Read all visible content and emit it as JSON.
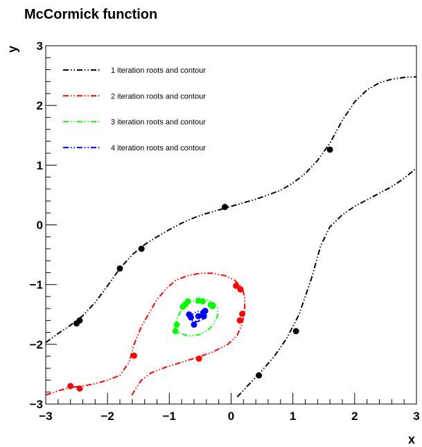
{
  "chart_data": {
    "type": "scatter",
    "title": "McCormick function",
    "xlabel": "x",
    "ylabel": "y",
    "xlim": [
      -3,
      3
    ],
    "ylim": [
      -3,
      3
    ],
    "x_ticks": [
      -3,
      -2,
      -1,
      0,
      1,
      2,
      3
    ],
    "y_ticks": [
      -3,
      -2,
      -1,
      0,
      1,
      2,
      3
    ],
    "x_tick_labels": [
      "−3",
      "−2",
      "−1",
      "0",
      "1",
      "2",
      "3"
    ],
    "y_tick_labels": [
      "−3",
      "−2",
      "−1",
      "0",
      "1",
      "2",
      "3"
    ],
    "grid": false,
    "legend_position": "top-left",
    "series": [
      {
        "name": "1 iteration roots and contour",
        "color": "#000000",
        "contours": [
          [
            [
              -3.0,
              -1.97
            ],
            [
              -2.8,
              -1.82
            ],
            [
              -2.6,
              -1.68
            ],
            [
              -2.4,
              -1.52
            ],
            [
              -2.2,
              -1.3
            ],
            [
              -2.0,
              -1.02
            ],
            [
              -1.8,
              -0.73
            ],
            [
              -1.6,
              -0.5
            ],
            [
              -1.4,
              -0.33
            ],
            [
              -1.2,
              -0.2
            ],
            [
              -1.0,
              -0.08
            ],
            [
              -0.8,
              0.03
            ],
            [
              -0.6,
              0.12
            ],
            [
              -0.4,
              0.19
            ],
            [
              -0.2,
              0.25
            ],
            [
              0.0,
              0.31
            ],
            [
              0.2,
              0.37
            ],
            [
              0.4,
              0.43
            ],
            [
              0.6,
              0.5
            ],
            [
              0.8,
              0.58
            ],
            [
              1.0,
              0.7
            ],
            [
              1.2,
              0.86
            ],
            [
              1.4,
              1.08
            ],
            [
              1.6,
              1.37
            ],
            [
              1.8,
              1.75
            ],
            [
              2.0,
              2.06
            ],
            [
              2.2,
              2.26
            ],
            [
              2.4,
              2.38
            ],
            [
              2.6,
              2.44
            ],
            [
              2.8,
              2.47
            ],
            [
              3.0,
              2.48
            ]
          ],
          [
            [
              0.1,
              -2.88
            ],
            [
              0.3,
              -2.66
            ],
            [
              0.5,
              -2.44
            ],
            [
              0.7,
              -2.2
            ],
            [
              0.9,
              -1.9
            ],
            [
              1.1,
              -1.5
            ],
            [
              1.3,
              -0.9
            ],
            [
              1.45,
              -0.35
            ],
            [
              1.6,
              -0.03
            ],
            [
              1.8,
              0.17
            ],
            [
              2.0,
              0.31
            ],
            [
              2.2,
              0.42
            ],
            [
              2.4,
              0.53
            ],
            [
              2.6,
              0.64
            ],
            [
              2.8,
              0.78
            ],
            [
              3.0,
              0.95
            ]
          ]
        ],
        "points": [
          [
            -2.5,
            -1.65
          ],
          [
            -2.45,
            -1.6
          ],
          [
            -1.8,
            -0.73
          ],
          [
            -1.45,
            -0.4
          ],
          [
            -0.1,
            0.3
          ],
          [
            1.6,
            1.26
          ],
          [
            1.05,
            -1.78
          ],
          [
            0.45,
            -2.52
          ]
        ]
      },
      {
        "name": "2 iteration roots and contour",
        "color": "#ff0000",
        "contours": [
          [
            [
              -3.0,
              -2.85
            ],
            [
              -2.8,
              -2.78
            ],
            [
              -2.6,
              -2.72
            ],
            [
              -2.4,
              -2.7
            ],
            [
              -2.2,
              -2.66
            ],
            [
              -2.0,
              -2.6
            ],
            [
              -1.8,
              -2.52
            ],
            [
              -1.65,
              -2.3
            ],
            [
              -1.57,
              -2.0
            ],
            [
              -1.45,
              -1.7
            ],
            [
              -1.3,
              -1.43
            ],
            [
              -1.2,
              -1.25
            ],
            [
              -1.05,
              -1.07
            ],
            [
              -0.9,
              -0.93
            ],
            [
              -0.7,
              -0.85
            ],
            [
              -0.5,
              -0.81
            ],
            [
              -0.3,
              -0.81
            ],
            [
              -0.1,
              -0.85
            ],
            [
              0.05,
              -0.92
            ],
            [
              0.18,
              -1.05
            ],
            [
              0.22,
              -1.22
            ],
            [
              0.22,
              -1.45
            ],
            [
              0.18,
              -1.65
            ],
            [
              0.1,
              -1.85
            ],
            [
              -0.05,
              -2.0
            ],
            [
              -0.3,
              -2.13
            ],
            [
              -0.55,
              -2.22
            ],
            [
              -0.8,
              -2.3
            ],
            [
              -1.05,
              -2.38
            ],
            [
              -1.3,
              -2.48
            ],
            [
              -1.45,
              -2.6
            ],
            [
              -1.55,
              -2.75
            ],
            [
              -1.62,
              -2.88
            ]
          ]
        ],
        "points": [
          [
            -2.6,
            -2.7
          ],
          [
            -2.45,
            -2.74
          ],
          [
            -1.57,
            -2.19
          ],
          [
            -0.52,
            -2.24
          ],
          [
            0.14,
            -1.6
          ],
          [
            0.18,
            -1.49
          ],
          [
            0.15,
            -1.08
          ],
          [
            0.08,
            -1.02
          ]
        ]
      },
      {
        "name": "3 iteration roots and contour",
        "color": "#00ff00",
        "contours": [
          [
            [
              -0.9,
              -1.75
            ],
            [
              -0.88,
              -1.58
            ],
            [
              -0.82,
              -1.45
            ],
            [
              -0.72,
              -1.33
            ],
            [
              -0.58,
              -1.26
            ],
            [
              -0.42,
              -1.25
            ],
            [
              -0.3,
              -1.29
            ],
            [
              -0.22,
              -1.38
            ],
            [
              -0.22,
              -1.52
            ],
            [
              -0.28,
              -1.66
            ],
            [
              -0.38,
              -1.77
            ],
            [
              -0.52,
              -1.84
            ],
            [
              -0.68,
              -1.86
            ],
            [
              -0.82,
              -1.82
            ],
            [
              -0.9,
              -1.75
            ]
          ]
        ],
        "points": [
          [
            -0.9,
            -1.78
          ],
          [
            -0.88,
            -1.67
          ],
          [
            -0.78,
            -1.37
          ],
          [
            -0.74,
            -1.33
          ],
          [
            -0.7,
            -1.28
          ],
          [
            -0.53,
            -1.27
          ],
          [
            -0.46,
            -1.28
          ],
          [
            -0.33,
            -1.34
          ],
          [
            -0.3,
            -1.36
          ]
        ]
      },
      {
        "name": "4 iteration roots and contour",
        "color": "#0000ff",
        "contours": [
          [
            [
              -0.68,
              -1.55
            ],
            [
              -0.6,
              -1.47
            ],
            [
              -0.5,
              -1.44
            ],
            [
              -0.42,
              -1.5
            ],
            [
              -0.45,
              -1.58
            ],
            [
              -0.55,
              -1.62
            ],
            [
              -0.65,
              -1.6
            ],
            [
              -0.68,
              -1.55
            ]
          ]
        ],
        "points": [
          [
            -0.68,
            -1.5
          ],
          [
            -0.65,
            -1.55
          ],
          [
            -0.6,
            -1.67
          ],
          [
            -0.53,
            -1.53
          ],
          [
            -0.45,
            -1.47
          ],
          [
            -0.44,
            -1.53
          ],
          [
            -0.42,
            -1.44
          ]
        ]
      }
    ]
  }
}
